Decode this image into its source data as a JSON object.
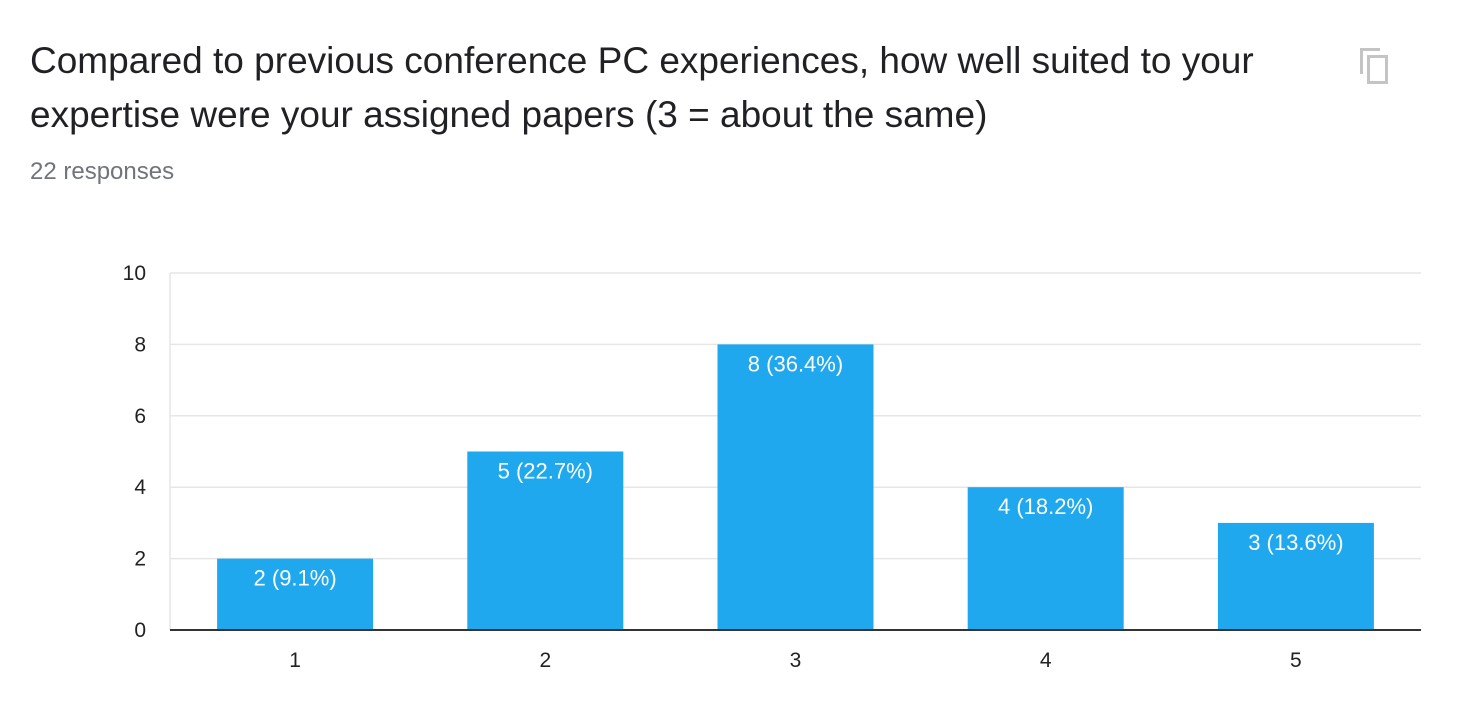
{
  "question": {
    "title": "Compared to previous conference PC experiences, how well suited to your expertise were your assigned papers (3 = about the same)",
    "responses": "22 responses",
    "copy_icon": "copy-icon"
  },
  "colors": {
    "bar": "#1fa8ee",
    "grid": "#e6e6e6",
    "axis": "#333333",
    "label_inside": "#ffffff",
    "tick": "#222222"
  },
  "chart_data": {
    "type": "bar",
    "title": "",
    "xlabel": "",
    "ylabel": "",
    "categories": [
      "1",
      "2",
      "3",
      "4",
      "5"
    ],
    "values": [
      2,
      5,
      8,
      4,
      3
    ],
    "data_labels": [
      "2 (9.1%)",
      "5 (22.7%)",
      "8 (36.4%)",
      "4 (18.2%)",
      "3 (13.6%)"
    ],
    "ylim": [
      0,
      10
    ],
    "yticks": [
      "0",
      "2",
      "4",
      "6",
      "8",
      "10"
    ],
    "ytick_values": [
      0,
      2,
      4,
      6,
      8,
      10
    ],
    "grid": true,
    "legend": "none"
  }
}
